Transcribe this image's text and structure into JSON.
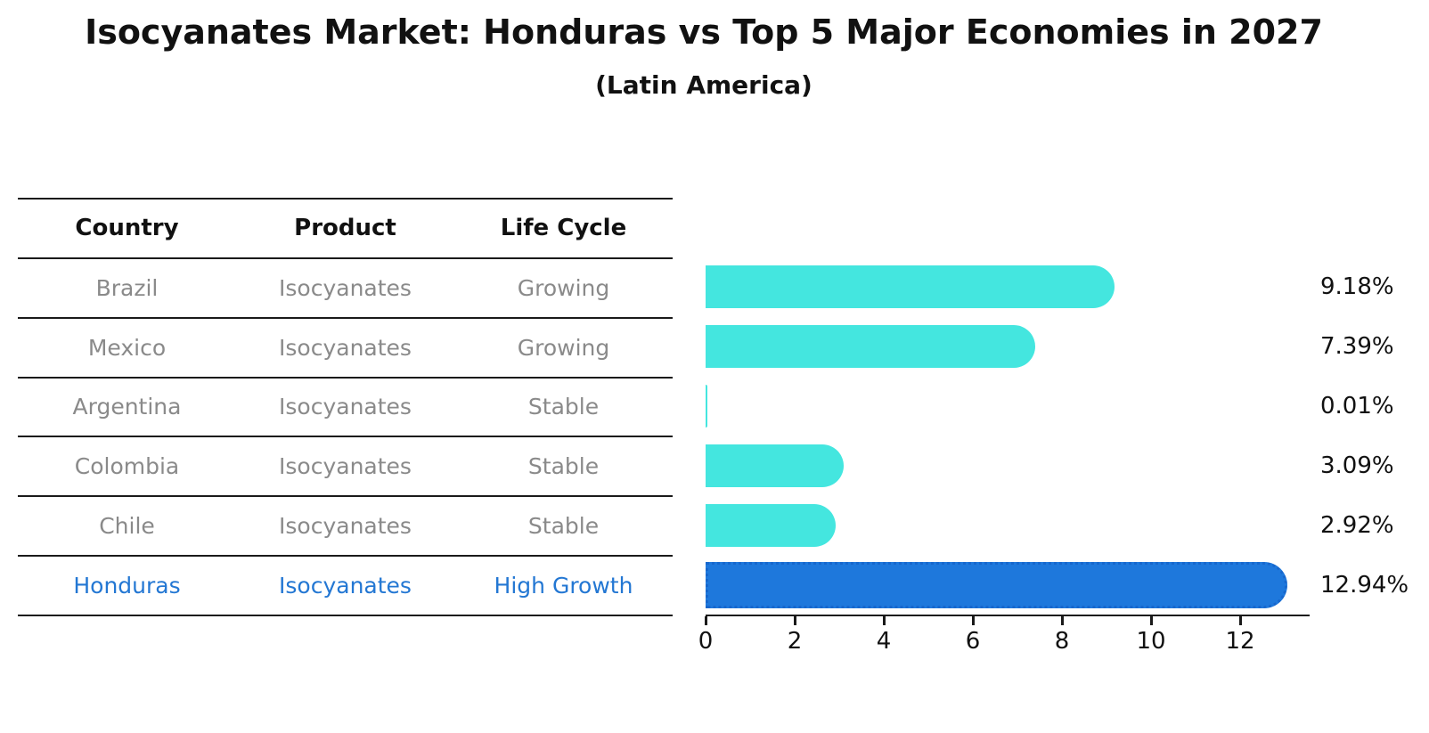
{
  "title": "Isocyanates Market: Honduras vs Top 5 Major Economies in 2027",
  "subtitle": "(Latin America)",
  "table": {
    "headers": [
      "Country",
      "Product",
      "Life Cycle"
    ],
    "rows": [
      {
        "country": "Brazil",
        "product": "Isocyanates",
        "life_cycle": "Growing",
        "highlight": false
      },
      {
        "country": "Mexico",
        "product": "Isocyanates",
        "life_cycle": "Growing",
        "highlight": false
      },
      {
        "country": "Argentina",
        "product": "Isocyanates",
        "life_cycle": "Stable",
        "highlight": false
      },
      {
        "country": "Colombia",
        "product": "Isocyanates",
        "life_cycle": "Stable",
        "highlight": false
      },
      {
        "country": "Chile",
        "product": "Isocyanates",
        "life_cycle": "Stable",
        "highlight": false
      },
      {
        "country": "Honduras",
        "product": "Isocyanates",
        "life_cycle": "High Growth",
        "highlight": true
      }
    ]
  },
  "chart_data": {
    "type": "bar",
    "orientation": "horizontal",
    "title": "Isocyanates Market: Honduras vs Top 5 Major Economies in 2027",
    "subtitle": "(Latin America)",
    "categories": [
      "Brazil",
      "Mexico",
      "Argentina",
      "Colombia",
      "Chile",
      "Honduras"
    ],
    "values": [
      9.18,
      7.39,
      0.01,
      3.09,
      2.92,
      12.94
    ],
    "value_labels": [
      "9.18%",
      "7.39%",
      "0.01%",
      "3.09%",
      "2.92%",
      "12.94%"
    ],
    "unit": "%",
    "xlim": [
      0,
      13.56
    ],
    "xticks": [
      0,
      2,
      4,
      6,
      8,
      10,
      12
    ],
    "grid": false,
    "legend": false,
    "highlight_index": 5
  },
  "colors": {
    "bar_default": "#44e6df",
    "bar_highlight": "#1e78dc",
    "bar_highlight_border": "#1767cd",
    "table_text": "#8a8a8a",
    "highlight_text": "#2377d3",
    "header_text": "#111111",
    "line": "#1a1a1a"
  }
}
